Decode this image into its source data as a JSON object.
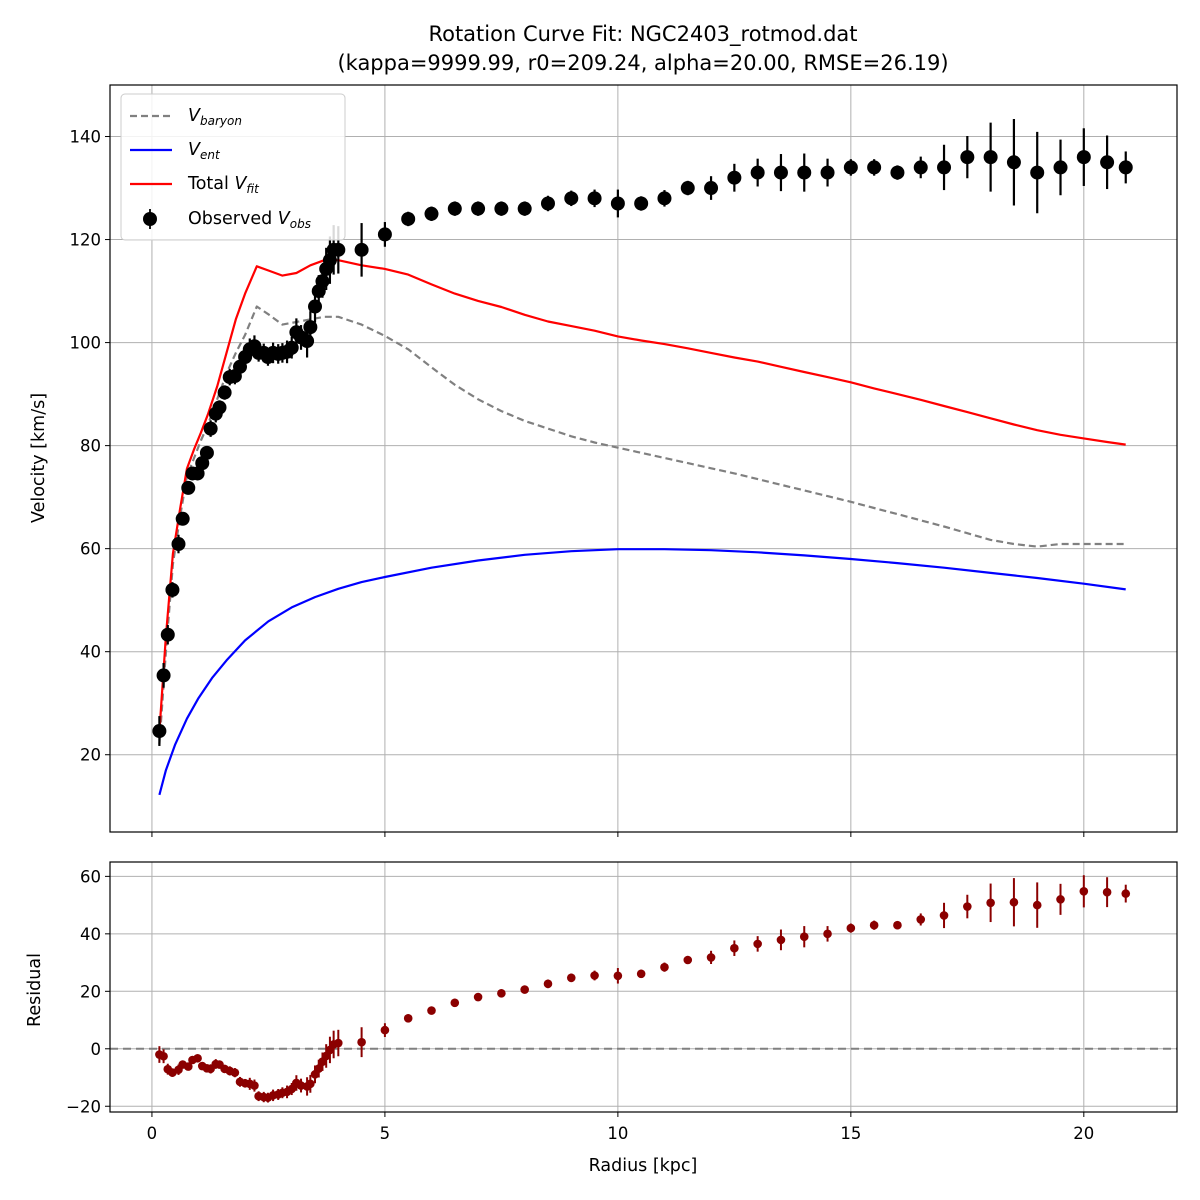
{
  "title_line1": "Rotation Curve Fit: NGC2403_rotmod.dat",
  "title_line2": "(kappa=9999.99, r0=209.24, alpha=20.00, RMSE=26.19)",
  "colors": {
    "baryon": "#808080",
    "ent": "#0000ff",
    "fit": "#ff0000",
    "obs": "#000000",
    "residual": "#8b0000",
    "grid": "#b0b0b0"
  },
  "legend": {
    "baryon": {
      "main": "V",
      "sub": "baryon"
    },
    "ent": {
      "main": "V",
      "sub": "ent"
    },
    "fit": {
      "prefix": "Total ",
      "main": "V",
      "sub": "fit"
    },
    "obs": {
      "prefix": "Observed ",
      "main": "V",
      "sub": "obs"
    }
  },
  "chart_data": [
    {
      "type": "line",
      "xlabel": "",
      "ylabel": "Velocity [km/s]",
      "xlim": [
        -0.9,
        22
      ],
      "ylim": [
        5,
        150
      ],
      "xticks": [
        0,
        5,
        10,
        15,
        20
      ],
      "yticks": [
        20,
        40,
        60,
        80,
        100,
        120,
        140
      ],
      "grid": true,
      "legend_position": "top-left",
      "series": [
        {
          "name": "V_baryon",
          "style": "dashed",
          "x": [
            0.16,
            0.3,
            0.45,
            0.6,
            0.75,
            0.9,
            1.05,
            1.2,
            1.4,
            1.6,
            1.8,
            2.0,
            2.25,
            2.5,
            2.8,
            3.1,
            3.4,
            3.7,
            4.0,
            4.5,
            5.0,
            5.5,
            6.0,
            6.5,
            7.0,
            7.5,
            8.0,
            8.5,
            9.0,
            9.5,
            10.0,
            10.5,
            11.0,
            11.5,
            12.0,
            12.5,
            13.0,
            13.5,
            14.0,
            14.5,
            15.0,
            15.5,
            16.0,
            16.5,
            17.0,
            17.5,
            18.0,
            18.5,
            19.0,
            19.5,
            20.0,
            20.5,
            20.9
          ],
          "values": [
            22,
            40,
            57,
            66,
            74,
            77.5,
            81,
            84,
            89,
            94,
            98,
            101.5,
            107,
            105.5,
            103.5,
            104,
            104.5,
            105,
            105,
            103.5,
            101.3,
            98.7,
            95.2,
            91.8,
            89.0,
            86.7,
            84.8,
            83.3,
            81.8,
            80.6,
            79.6,
            78.6,
            77.6,
            76.6,
            75.6,
            74.6,
            73.5,
            72.4,
            71.3,
            70.2,
            69.1,
            67.9,
            66.7,
            65.5,
            64.3,
            63.0,
            61.7,
            60.9,
            60.4,
            60.9,
            60.9,
            60.9,
            60.9
          ]
        },
        {
          "name": "V_ent",
          "style": "solid",
          "x": [
            0.16,
            0.3,
            0.5,
            0.75,
            1.0,
            1.3,
            1.6,
            2.0,
            2.5,
            3.0,
            3.5,
            4.0,
            4.5,
            5.0,
            6.0,
            7.0,
            8.0,
            9.0,
            10.0,
            11.0,
            12.0,
            13.0,
            14.0,
            15.0,
            16.0,
            17.0,
            18.0,
            19.0,
            20.0,
            20.9
          ],
          "values": [
            12.2,
            17,
            22,
            27,
            31,
            35,
            38.3,
            42.2,
            45.9,
            48.6,
            50.6,
            52.2,
            53.5,
            54.5,
            56.3,
            57.7,
            58.8,
            59.5,
            59.9,
            59.9,
            59.7,
            59.3,
            58.7,
            58.0,
            57.2,
            56.3,
            55.3,
            54.3,
            53.2,
            52.1
          ]
        },
        {
          "name": "Total V_fit",
          "style": "solid",
          "x": [
            0.16,
            0.3,
            0.45,
            0.6,
            0.75,
            0.9,
            1.05,
            1.2,
            1.4,
            1.6,
            1.8,
            2.0,
            2.25,
            2.5,
            2.8,
            3.1,
            3.4,
            3.7,
            4.0,
            4.5,
            5.0,
            5.5,
            6.0,
            6.5,
            7.0,
            7.5,
            8.0,
            8.5,
            9.0,
            9.5,
            10.0,
            10.5,
            11.0,
            11.5,
            12.0,
            12.5,
            13.0,
            13.5,
            14.0,
            14.5,
            15.0,
            15.5,
            16.0,
            16.5,
            17.0,
            17.5,
            18.0,
            18.5,
            19.0,
            19.5,
            20.0,
            20.5,
            20.9
          ],
          "values": [
            24.5,
            43,
            59,
            67.5,
            75.5,
            79.2,
            82.5,
            86,
            91.5,
            98,
            104.5,
            109.5,
            114.8,
            114,
            113,
            113.5,
            115,
            116,
            116,
            115,
            114.3,
            113.2,
            111.3,
            109.5,
            108.1,
            106.9,
            105.4,
            104.1,
            103.2,
            102.3,
            101.2,
            100.4,
            99.7,
            98.9,
            98.0,
            97.1,
            96.3,
            95.3,
            94.3,
            93.3,
            92.3,
            91.1,
            90.0,
            88.9,
            87.7,
            86.5,
            85.3,
            84.1,
            83.0,
            82.1,
            81.4,
            80.7,
            80.2
          ]
        },
        {
          "name": "Observed V_obs",
          "style": "markers",
          "x": [
            0.16,
            0.25,
            0.34,
            0.44,
            0.57,
            0.66,
            0.78,
            0.87,
            0.98,
            1.08,
            1.18,
            1.26,
            1.37,
            1.45,
            1.56,
            1.67,
            1.78,
            1.89,
            2.0,
            2.1,
            2.2,
            2.29,
            2.4,
            2.49,
            2.6,
            2.71,
            2.8,
            2.9,
            3.0,
            3.1,
            3.2,
            3.33,
            3.4,
            3.5,
            3.58,
            3.66,
            3.74,
            3.82,
            3.9,
            4.0,
            4.5,
            5.0,
            5.5,
            6.0,
            6.5,
            7.0,
            7.5,
            8.0,
            8.5,
            9.0,
            9.5,
            10.0,
            10.5,
            11.0,
            11.5,
            12.0,
            12.5,
            13.0,
            13.5,
            14.0,
            14.5,
            15.0,
            15.5,
            16.0,
            16.5,
            17.0,
            17.5,
            18.0,
            18.5,
            19.0,
            19.5,
            20.0,
            20.5,
            20.9
          ],
          "values": [
            24.6,
            35.4,
            43.3,
            52.0,
            60.9,
            65.8,
            71.8,
            74.6,
            74.6,
            76.6,
            78.6,
            83.3,
            86.2,
            87.4,
            90.3,
            93.3,
            93.5,
            95.3,
            97.2,
            98.7,
            99.3,
            98.0,
            98.0,
            97.2,
            98.0,
            97.8,
            98.0,
            98.2,
            99.0,
            102.0,
            101.0,
            100.3,
            103.0,
            107.0,
            110.0,
            111.9,
            114.3,
            116.0,
            118.0,
            118.0,
            118.0,
            121.0,
            124.0,
            125.0,
            126.0,
            126.0,
            126.0,
            126.0,
            127.0,
            128.0,
            128.0,
            127.0,
            127.0,
            128.0,
            130.0,
            130.0,
            132.0,
            133.0,
            133.0,
            133.0,
            133.0,
            134.0,
            134.0,
            133.0,
            134.0,
            134.0,
            136.0,
            136.0,
            135.0,
            133.0,
            134.0,
            136.0,
            135.0,
            134.0
          ],
          "errors": [
            2.9,
            2.4,
            1.9,
            1.5,
            1.8,
            1.3,
            1.3,
            1.1,
            1.2,
            1.4,
            1.3,
            1.6,
            1.7,
            1.4,
            1.4,
            1.6,
            1.6,
            1.7,
            1.5,
            2.1,
            2.1,
            1.7,
            1.8,
            1.7,
            2.0,
            1.9,
            1.9,
            2.2,
            2.1,
            2.7,
            2.4,
            3.2,
            3.1,
            3.1,
            3.1,
            3.2,
            4.1,
            4.6,
            4.8,
            4.6,
            5.2,
            2.4,
            1.4,
            1.4,
            1.4,
            1.4,
            1.4,
            1.4,
            1.5,
            1.5,
            1.7,
            2.7,
            1.4,
            1.6,
            1.4,
            2.3,
            2.7,
            2.7,
            3.6,
            3.7,
            2.7,
            1.6,
            1.6,
            1.4,
            2.1,
            4.4,
            4.1,
            6.7,
            8.4,
            7.9,
            5.4,
            5.6,
            5.2,
            3.1
          ]
        }
      ]
    },
    {
      "type": "scatter",
      "xlabel": "Radius [kpc]",
      "ylabel": "Residual",
      "xlim": [
        -0.9,
        22
      ],
      "ylim": [
        -22,
        65
      ],
      "xticks": [
        0,
        5,
        10,
        15,
        20
      ],
      "yticks": [
        -20,
        0,
        20,
        40,
        60
      ],
      "grid": true,
      "zero_line": 0,
      "series": [
        {
          "name": "Residual",
          "x": [
            0.16,
            0.25,
            0.34,
            0.44,
            0.57,
            0.66,
            0.78,
            0.87,
            0.98,
            1.08,
            1.18,
            1.26,
            1.37,
            1.45,
            1.56,
            1.67,
            1.78,
            1.89,
            2.0,
            2.1,
            2.2,
            2.29,
            2.4,
            2.49,
            2.6,
            2.71,
            2.8,
            2.9,
            3.0,
            3.1,
            3.2,
            3.33,
            3.4,
            3.5,
            3.58,
            3.66,
            3.74,
            3.82,
            3.9,
            4.0,
            4.5,
            5.0,
            5.5,
            6.0,
            6.5,
            7.0,
            7.5,
            8.0,
            8.5,
            9.0,
            9.5,
            10.0,
            10.5,
            11.0,
            11.5,
            12.0,
            12.5,
            13.0,
            13.5,
            14.0,
            14.5,
            15.0,
            15.5,
            16.0,
            16.5,
            17.0,
            17.5,
            18.0,
            18.5,
            19.0,
            19.5,
            20.0,
            20.5,
            20.9
          ],
          "values": [
            -2.0,
            -2.6,
            -7.1,
            -8.3,
            -7.3,
            -5.5,
            -6.2,
            -3.9,
            -3.3,
            -6.0,
            -6.8,
            -7.0,
            -5.3,
            -5.5,
            -7.0,
            -7.7,
            -8.3,
            -11.5,
            -12.0,
            -12.2,
            -12.8,
            -16.5,
            -16.8,
            -17.0,
            -16.2,
            -15.9,
            -15.3,
            -15.0,
            -14.0,
            -11.9,
            -12.8,
            -13.1,
            -12.2,
            -8.9,
            -6.9,
            -4.5,
            -2.5,
            -0.4,
            1.5,
            2.0,
            2.3,
            6.5,
            10.6,
            13.3,
            16.0,
            18.0,
            19.3,
            20.6,
            22.6,
            24.7,
            25.5,
            25.4,
            26.1,
            28.4,
            30.9,
            31.8,
            35.0,
            36.5,
            37.9,
            39.0,
            40.0,
            42.0,
            43.0,
            43.0,
            45.0,
            46.4,
            49.5,
            50.8,
            51.0,
            50.0,
            52.0,
            54.8,
            54.5,
            54.0
          ],
          "errors": [
            2.9,
            2.4,
            1.9,
            1.5,
            1.8,
            1.3,
            1.3,
            1.1,
            1.2,
            1.4,
            1.3,
            1.6,
            1.7,
            1.4,
            1.4,
            1.6,
            1.6,
            1.7,
            1.5,
            2.1,
            2.1,
            1.7,
            1.8,
            1.7,
            2.0,
            1.9,
            1.9,
            2.2,
            2.1,
            2.7,
            2.4,
            3.2,
            3.1,
            3.1,
            3.1,
            3.2,
            4.1,
            4.6,
            4.8,
            4.6,
            5.2,
            2.4,
            1.4,
            1.4,
            1.4,
            1.4,
            1.4,
            1.4,
            1.5,
            1.5,
            1.7,
            2.7,
            1.4,
            1.6,
            1.4,
            2.3,
            2.7,
            2.7,
            3.6,
            3.7,
            2.7,
            1.6,
            1.6,
            1.4,
            2.1,
            4.4,
            4.1,
            6.7,
            8.4,
            7.9,
            5.4,
            5.6,
            5.2,
            3.1
          ]
        }
      ]
    }
  ]
}
